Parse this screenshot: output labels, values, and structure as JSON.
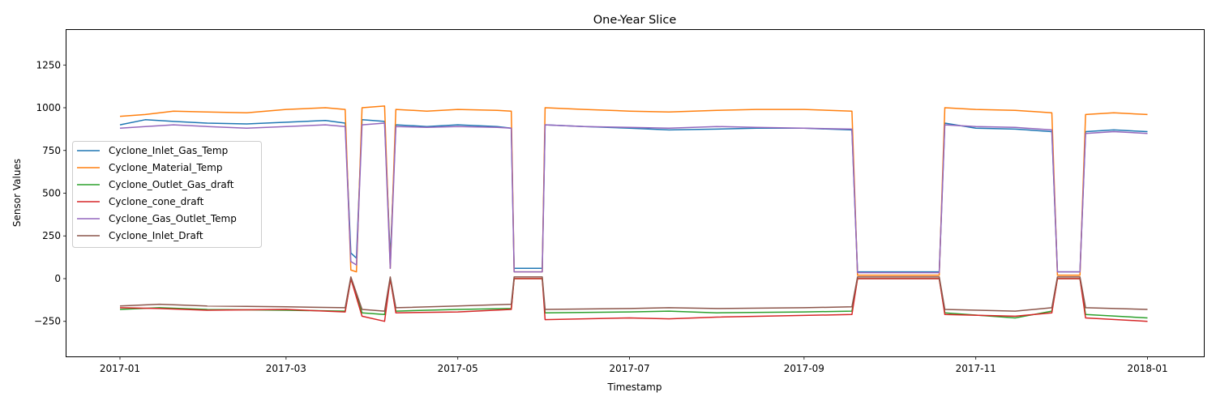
{
  "chart_data": {
    "type": "line",
    "title": "One-Year Slice",
    "xlabel": "Timestamp",
    "ylabel": "Sensor Values",
    "x_range": [
      "2016-12-13",
      "2018-01-21"
    ],
    "ylim": [
      -455,
      1455
    ],
    "x_ticks": [
      "2017-01",
      "2017-03",
      "2017-05",
      "2017-07",
      "2017-09",
      "2017-11",
      "2018-01"
    ],
    "y_ticks": [
      -250,
      0,
      250,
      500,
      750,
      1000,
      1250
    ],
    "grid": false,
    "legend_position": "center-left",
    "series": [
      {
        "name": "Cyclone_Inlet_Gas_Temp",
        "color": "#1f77b4",
        "points": [
          [
            "2017-01-01",
            900
          ],
          [
            "2017-01-10",
            930
          ],
          [
            "2017-01-20",
            920
          ],
          [
            "2017-02-01",
            910
          ],
          [
            "2017-02-15",
            905
          ],
          [
            "2017-03-01",
            915
          ],
          [
            "2017-03-15",
            925
          ],
          [
            "2017-03-22",
            910
          ],
          [
            "2017-03-24",
            150
          ],
          [
            "2017-03-26",
            120
          ],
          [
            "2017-03-28",
            930
          ],
          [
            "2017-04-05",
            920
          ],
          [
            "2017-04-07",
            120
          ],
          [
            "2017-04-09",
            900
          ],
          [
            "2017-04-20",
            890
          ],
          [
            "2017-05-01",
            900
          ],
          [
            "2017-05-15",
            890
          ],
          [
            "2017-05-20",
            880
          ],
          [
            "2017-05-21",
            60
          ],
          [
            "2017-05-31",
            60
          ],
          [
            "2017-06-01",
            900
          ],
          [
            "2017-06-15",
            890
          ],
          [
            "2017-07-01",
            880
          ],
          [
            "2017-07-15",
            870
          ],
          [
            "2017-08-01",
            875
          ],
          [
            "2017-08-15",
            880
          ],
          [
            "2017-09-01",
            880
          ],
          [
            "2017-09-18",
            870
          ],
          [
            "2017-09-20",
            40
          ],
          [
            "2017-10-19",
            40
          ],
          [
            "2017-10-21",
            910
          ],
          [
            "2017-11-01",
            880
          ],
          [
            "2017-11-15",
            875
          ],
          [
            "2017-11-28",
            860
          ],
          [
            "2017-11-30",
            40
          ],
          [
            "2017-12-08",
            40
          ],
          [
            "2017-12-10",
            860
          ],
          [
            "2017-12-20",
            870
          ],
          [
            "2018-01-01",
            860
          ]
        ]
      },
      {
        "name": "Cyclone_Material_Temp",
        "color": "#ff7f0e",
        "points": [
          [
            "2017-01-01",
            950
          ],
          [
            "2017-01-10",
            960
          ],
          [
            "2017-01-20",
            980
          ],
          [
            "2017-02-01",
            975
          ],
          [
            "2017-02-15",
            970
          ],
          [
            "2017-03-01",
            990
          ],
          [
            "2017-03-15",
            1000
          ],
          [
            "2017-03-22",
            990
          ],
          [
            "2017-03-24",
            50
          ],
          [
            "2017-03-26",
            40
          ],
          [
            "2017-03-28",
            1000
          ],
          [
            "2017-04-05",
            1010
          ],
          [
            "2017-04-07",
            60
          ],
          [
            "2017-04-09",
            990
          ],
          [
            "2017-04-20",
            980
          ],
          [
            "2017-05-01",
            990
          ],
          [
            "2017-05-15",
            985
          ],
          [
            "2017-05-20",
            980
          ],
          [
            "2017-05-21",
            40
          ],
          [
            "2017-05-31",
            40
          ],
          [
            "2017-06-01",
            1000
          ],
          [
            "2017-06-15",
            990
          ],
          [
            "2017-07-01",
            980
          ],
          [
            "2017-07-15",
            975
          ],
          [
            "2017-08-01",
            985
          ],
          [
            "2017-08-15",
            990
          ],
          [
            "2017-09-01",
            990
          ],
          [
            "2017-09-18",
            980
          ],
          [
            "2017-09-20",
            20
          ],
          [
            "2017-10-19",
            20
          ],
          [
            "2017-10-21",
            1000
          ],
          [
            "2017-11-01",
            990
          ],
          [
            "2017-11-15",
            985
          ],
          [
            "2017-11-28",
            970
          ],
          [
            "2017-11-30",
            20
          ],
          [
            "2017-12-08",
            20
          ],
          [
            "2017-12-10",
            960
          ],
          [
            "2017-12-20",
            970
          ],
          [
            "2018-01-01",
            960
          ]
        ]
      },
      {
        "name": "Cyclone_Outlet_Gas_draft",
        "color": "#2ca02c",
        "points": [
          [
            "2017-01-01",
            -180
          ],
          [
            "2017-01-15",
            -170
          ],
          [
            "2017-02-01",
            -180
          ],
          [
            "2017-03-01",
            -185
          ],
          [
            "2017-03-22",
            -190
          ],
          [
            "2017-03-24",
            0
          ],
          [
            "2017-03-28",
            -200
          ],
          [
            "2017-04-05",
            -210
          ],
          [
            "2017-04-07",
            0
          ],
          [
            "2017-04-09",
            -190
          ],
          [
            "2017-05-01",
            -180
          ],
          [
            "2017-05-20",
            -175
          ],
          [
            "2017-05-21",
            0
          ],
          [
            "2017-05-31",
            0
          ],
          [
            "2017-06-01",
            -200
          ],
          [
            "2017-07-01",
            -195
          ],
          [
            "2017-07-15",
            -190
          ],
          [
            "2017-08-01",
            -200
          ],
          [
            "2017-09-01",
            -195
          ],
          [
            "2017-09-18",
            -190
          ],
          [
            "2017-09-20",
            0
          ],
          [
            "2017-10-19",
            0
          ],
          [
            "2017-10-21",
            -200
          ],
          [
            "2017-11-15",
            -230
          ],
          [
            "2017-11-28",
            -190
          ],
          [
            "2017-11-30",
            0
          ],
          [
            "2017-12-08",
            0
          ],
          [
            "2017-12-10",
            -210
          ],
          [
            "2018-01-01",
            -230
          ]
        ]
      },
      {
        "name": "Cyclone_cone_draft",
        "color": "#d62728",
        "points": [
          [
            "2017-01-01",
            -170
          ],
          [
            "2017-01-15",
            -175
          ],
          [
            "2017-02-01",
            -185
          ],
          [
            "2017-03-01",
            -180
          ],
          [
            "2017-03-22",
            -195
          ],
          [
            "2017-03-24",
            0
          ],
          [
            "2017-03-28",
            -220
          ],
          [
            "2017-04-05",
            -250
          ],
          [
            "2017-04-07",
            0
          ],
          [
            "2017-04-09",
            -200
          ],
          [
            "2017-05-01",
            -195
          ],
          [
            "2017-05-20",
            -180
          ],
          [
            "2017-05-21",
            0
          ],
          [
            "2017-05-31",
            0
          ],
          [
            "2017-06-01",
            -240
          ],
          [
            "2017-07-01",
            -230
          ],
          [
            "2017-07-15",
            -235
          ],
          [
            "2017-08-01",
            -225
          ],
          [
            "2017-09-01",
            -215
          ],
          [
            "2017-09-18",
            -210
          ],
          [
            "2017-09-20",
            0
          ],
          [
            "2017-10-19",
            0
          ],
          [
            "2017-10-21",
            -210
          ],
          [
            "2017-11-15",
            -220
          ],
          [
            "2017-11-28",
            -200
          ],
          [
            "2017-11-30",
            0
          ],
          [
            "2017-12-08",
            0
          ],
          [
            "2017-12-10",
            -230
          ],
          [
            "2018-01-01",
            -250
          ]
        ]
      },
      {
        "name": "Cyclone_Gas_Outlet_Temp",
        "color": "#9467bd",
        "points": [
          [
            "2017-01-01",
            880
          ],
          [
            "2017-01-10",
            890
          ],
          [
            "2017-01-20",
            900
          ],
          [
            "2017-02-01",
            890
          ],
          [
            "2017-02-15",
            880
          ],
          [
            "2017-03-01",
            890
          ],
          [
            "2017-03-15",
            900
          ],
          [
            "2017-03-22",
            890
          ],
          [
            "2017-03-24",
            100
          ],
          [
            "2017-03-26",
            80
          ],
          [
            "2017-03-28",
            900
          ],
          [
            "2017-04-05",
            910
          ],
          [
            "2017-04-07",
            60
          ],
          [
            "2017-04-09",
            890
          ],
          [
            "2017-04-20",
            885
          ],
          [
            "2017-05-01",
            890
          ],
          [
            "2017-05-15",
            885
          ],
          [
            "2017-05-20",
            880
          ],
          [
            "2017-05-21",
            40
          ],
          [
            "2017-05-31",
            40
          ],
          [
            "2017-06-01",
            900
          ],
          [
            "2017-06-15",
            890
          ],
          [
            "2017-07-01",
            885
          ],
          [
            "2017-07-15",
            880
          ],
          [
            "2017-08-01",
            890
          ],
          [
            "2017-08-15",
            885
          ],
          [
            "2017-09-01",
            880
          ],
          [
            "2017-09-18",
            875
          ],
          [
            "2017-09-20",
            35
          ],
          [
            "2017-10-19",
            35
          ],
          [
            "2017-10-21",
            900
          ],
          [
            "2017-11-01",
            890
          ],
          [
            "2017-11-15",
            885
          ],
          [
            "2017-11-28",
            870
          ],
          [
            "2017-11-30",
            40
          ],
          [
            "2017-12-08",
            40
          ],
          [
            "2017-12-10",
            850
          ],
          [
            "2017-12-20",
            860
          ],
          [
            "2018-01-01",
            850
          ]
        ]
      },
      {
        "name": "Cyclone_Inlet_Draft",
        "color": "#8c564b",
        "points": [
          [
            "2017-01-01",
            -160
          ],
          [
            "2017-01-15",
            -150
          ],
          [
            "2017-02-01",
            -160
          ],
          [
            "2017-03-01",
            -165
          ],
          [
            "2017-03-22",
            -170
          ],
          [
            "2017-03-24",
            10
          ],
          [
            "2017-03-28",
            -180
          ],
          [
            "2017-04-05",
            -190
          ],
          [
            "2017-04-07",
            10
          ],
          [
            "2017-04-09",
            -170
          ],
          [
            "2017-05-01",
            -160
          ],
          [
            "2017-05-20",
            -150
          ],
          [
            "2017-05-21",
            10
          ],
          [
            "2017-05-31",
            10
          ],
          [
            "2017-06-01",
            -180
          ],
          [
            "2017-07-01",
            -175
          ],
          [
            "2017-07-15",
            -170
          ],
          [
            "2017-08-01",
            -175
          ],
          [
            "2017-09-01",
            -170
          ],
          [
            "2017-09-18",
            -165
          ],
          [
            "2017-09-20",
            10
          ],
          [
            "2017-10-19",
            10
          ],
          [
            "2017-10-21",
            -180
          ],
          [
            "2017-11-15",
            -190
          ],
          [
            "2017-11-28",
            -170
          ],
          [
            "2017-11-30",
            10
          ],
          [
            "2017-12-08",
            10
          ],
          [
            "2017-12-10",
            -170
          ],
          [
            "2018-01-01",
            -180
          ]
        ]
      }
    ]
  }
}
